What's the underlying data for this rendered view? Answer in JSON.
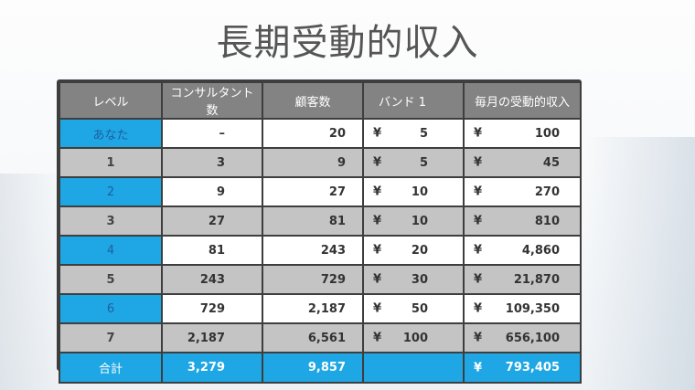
{
  "title": "長期受動的収入",
  "table": {
    "headers": [
      "レベル",
      "コンサルタント数",
      "顧客数",
      "バンド 1",
      "毎月の受動的収入"
    ],
    "rows": [
      {
        "level": "あなた",
        "consultants": "–",
        "customers": "20",
        "band_yen": "¥",
        "band": "5",
        "income_yen": "¥",
        "income": "100"
      },
      {
        "level": "1",
        "consultants": "3",
        "customers": "9",
        "band_yen": "¥",
        "band": "5",
        "income_yen": "¥",
        "income": "45"
      },
      {
        "level": "2",
        "consultants": "9",
        "customers": "27",
        "band_yen": "¥",
        "band": "10",
        "income_yen": "¥",
        "income": "270"
      },
      {
        "level": "3",
        "consultants": "27",
        "customers": "81",
        "band_yen": "¥",
        "band": "10",
        "income_yen": "¥",
        "income": "810"
      },
      {
        "level": "4",
        "consultants": "81",
        "customers": "243",
        "band_yen": "¥",
        "band": "20",
        "income_yen": "¥",
        "income": "4,860"
      },
      {
        "level": "5",
        "consultants": "243",
        "customers": "729",
        "band_yen": "¥",
        "band": "30",
        "income_yen": "¥",
        "income": "21,870"
      },
      {
        "level": "6",
        "consultants": "729",
        "customers": "2,187",
        "band_yen": "¥",
        "band": "50",
        "income_yen": "¥",
        "income": "109,350"
      },
      {
        "level": "7",
        "consultants": "2,187",
        "customers": "6,561",
        "band_yen": "¥",
        "band": "100",
        "income_yen": "¥",
        "income": "656,100"
      }
    ],
    "total": {
      "label": "合計",
      "consultants": "3,279",
      "customers": "9,857",
      "income_yen": "¥",
      "income": "793,405"
    }
  },
  "colors": {
    "accent_blue": "#1ea7e4",
    "header_gray": "#838383",
    "row_gray": "#c4c4c4"
  }
}
